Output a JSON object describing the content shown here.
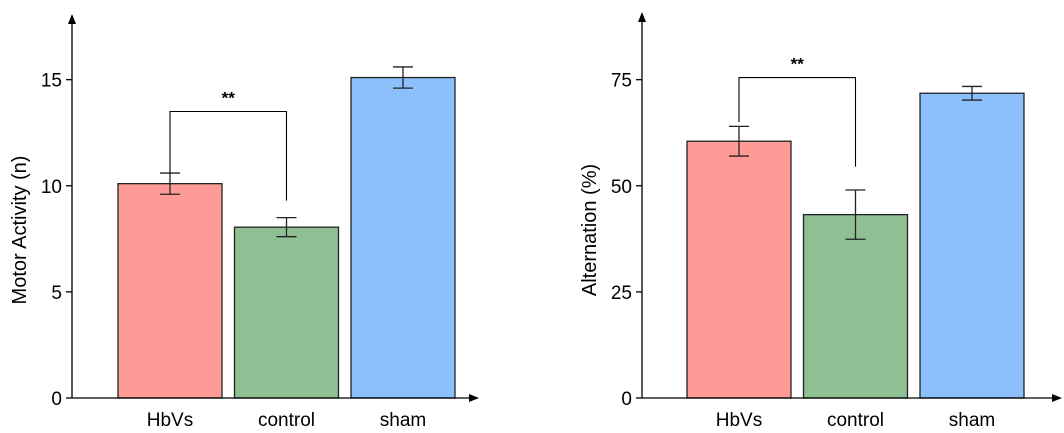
{
  "chart_data": [
    {
      "type": "bar",
      "title": "",
      "xlabel": "",
      "ylabel": "Motor Activity (n)",
      "ylim": [
        0,
        18
      ],
      "yticks": [
        0,
        5,
        10,
        15
      ],
      "categories": [
        "HbVs",
        "control",
        "sham"
      ],
      "values": [
        10.1,
        8.05,
        15.1
      ],
      "error": [
        0.5,
        0.45,
        0.5
      ],
      "colors": [
        "#ff9b96",
        "#8fc093",
        "#8cc0fd"
      ],
      "significance": {
        "from": 0,
        "to": 1,
        "label": "**",
        "y": 13.5,
        "left_bottom": 10.6,
        "right_bottom": 9.3
      }
    },
    {
      "type": "bar",
      "title": "",
      "xlabel": "",
      "ylabel": "Alternation (%)",
      "ylim": [
        0,
        90
      ],
      "yticks": [
        0,
        25,
        50,
        75
      ],
      "categories": [
        "HbVs",
        "control",
        "sham"
      ],
      "values": [
        60.5,
        43.2,
        71.8
      ],
      "error": [
        3.5,
        5.8,
        1.6
      ],
      "colors": [
        "#ff9b96",
        "#8fc093",
        "#8cc0fd"
      ],
      "significance": {
        "from": 0,
        "to": 1,
        "label": "**",
        "y": 75.5,
        "left_bottom": 65,
        "right_bottom": 54.5
      }
    }
  ]
}
